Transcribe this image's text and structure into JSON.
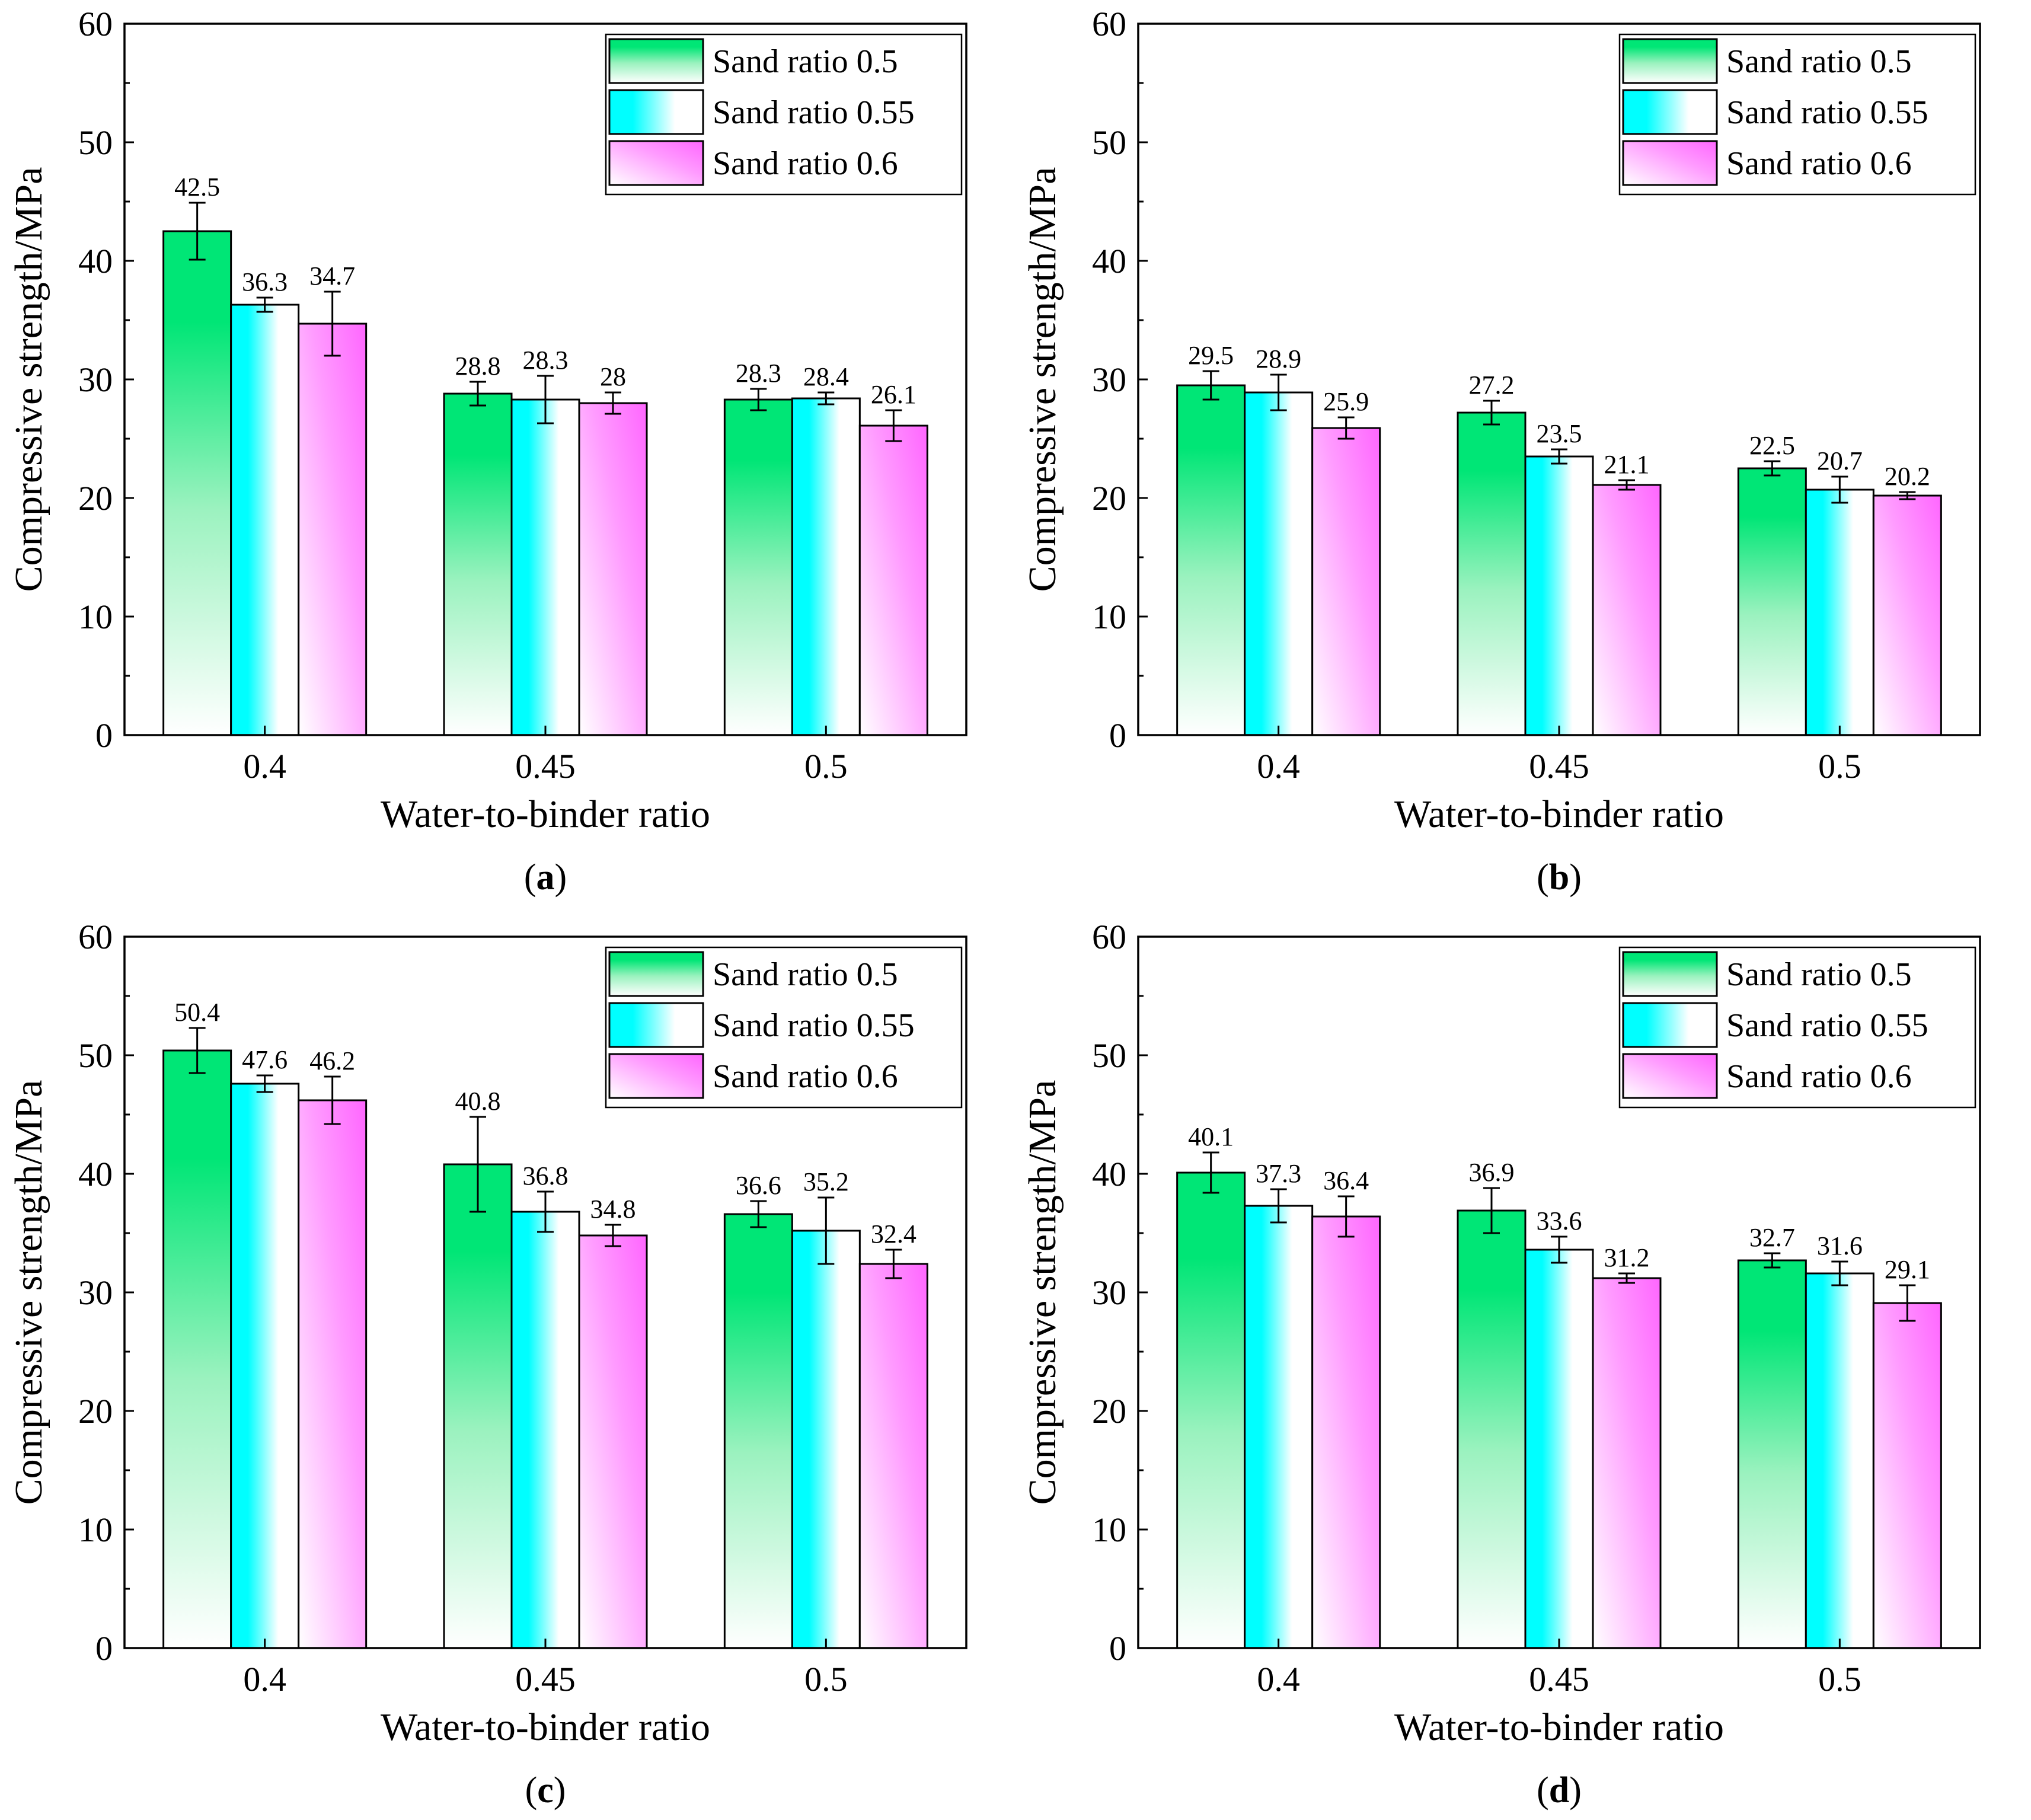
{
  "series_colors": [
    "#00e676",
    "#00ffff",
    "#ff66ff"
  ],
  "chart_data": [
    {
      "type": "bar",
      "panel_label": "a",
      "categories": [
        "0.4",
        "0.45",
        "0.5"
      ],
      "series": [
        {
          "name": "Sand ratio 0.5",
          "values": [
            42.5,
            28.8,
            28.3
          ],
          "value_labels": [
            "42.5",
            "28.8",
            "28.3"
          ],
          "errors": [
            2.4,
            1.0,
            0.9
          ]
        },
        {
          "name": "Sand ratio 0.55",
          "values": [
            36.3,
            28.3,
            28.4
          ],
          "value_labels": [
            "36.3",
            "28.3",
            "28.4"
          ],
          "errors": [
            0.6,
            2.0,
            0.5
          ]
        },
        {
          "name": "Sand ratio 0.6",
          "values": [
            34.7,
            28.0,
            26.1
          ],
          "value_labels": [
            "34.7",
            "28",
            "26.1"
          ],
          "errors": [
            2.7,
            0.9,
            1.3
          ]
        }
      ],
      "xlabel": "Water-to-binder ratio",
      "ylabel": "Compressive strength/MPa",
      "ylim": [
        0,
        60
      ],
      "yticks": [
        0,
        10,
        20,
        30,
        40,
        50,
        60
      ],
      "legend_position": "top-right"
    },
    {
      "type": "bar",
      "panel_label": "b",
      "categories": [
        "0.4",
        "0.45",
        "0.5"
      ],
      "series": [
        {
          "name": "Sand ratio 0.5",
          "values": [
            29.5,
            27.2,
            22.5
          ],
          "value_labels": [
            "29.5",
            "27.2",
            "22.5"
          ],
          "errors": [
            1.2,
            1.0,
            0.6
          ]
        },
        {
          "name": "Sand ratio 0.55",
          "values": [
            28.9,
            23.5,
            20.7
          ],
          "value_labels": [
            "28.9",
            "23.5",
            "20.7"
          ],
          "errors": [
            1.5,
            0.6,
            1.1
          ]
        },
        {
          "name": "Sand ratio 0.6",
          "values": [
            25.9,
            21.1,
            20.2
          ],
          "value_labels": [
            "25.9",
            "21.1",
            "20.2"
          ],
          "errors": [
            0.9,
            0.4,
            0.3
          ]
        }
      ],
      "xlabel": "Water-to-binder ratio",
      "ylabel": "Compressive strength/MPa",
      "ylim": [
        0,
        60
      ],
      "yticks": [
        0,
        10,
        20,
        30,
        40,
        50,
        60
      ],
      "legend_position": "top-right"
    },
    {
      "type": "bar",
      "panel_label": "c",
      "categories": [
        "0.4",
        "0.45",
        "0.5"
      ],
      "series": [
        {
          "name": "Sand ratio 0.5",
          "values": [
            50.4,
            40.8,
            36.6
          ],
          "value_labels": [
            "50.4",
            "40.8",
            "36.6"
          ],
          "errors": [
            1.9,
            4.0,
            1.1
          ]
        },
        {
          "name": "Sand ratio 0.55",
          "values": [
            47.6,
            36.8,
            35.2
          ],
          "value_labels": [
            "47.6",
            "36.8",
            "35.2"
          ],
          "errors": [
            0.7,
            1.7,
            2.8
          ]
        },
        {
          "name": "Sand ratio 0.6",
          "values": [
            46.2,
            34.8,
            32.4
          ],
          "value_labels": [
            "46.2",
            "34.8",
            "32.4"
          ],
          "errors": [
            2.0,
            0.9,
            1.2
          ]
        }
      ],
      "xlabel": "Water-to-binder ratio",
      "ylabel": "Compressive strength/MPa",
      "ylim": [
        0,
        60
      ],
      "yticks": [
        0,
        10,
        20,
        30,
        40,
        50,
        60
      ],
      "legend_position": "top-right"
    },
    {
      "type": "bar",
      "panel_label": "d",
      "categories": [
        "0.4",
        "0.45",
        "0.5"
      ],
      "series": [
        {
          "name": "Sand ratio 0.5",
          "values": [
            40.1,
            36.9,
            32.7
          ],
          "value_labels": [
            "40.1",
            "36.9",
            "32.7"
          ],
          "errors": [
            1.7,
            1.9,
            0.6
          ]
        },
        {
          "name": "Sand ratio 0.55",
          "values": [
            37.3,
            33.6,
            31.6
          ],
          "value_labels": [
            "37.3",
            "33.6",
            "31.6"
          ],
          "errors": [
            1.4,
            1.1,
            1.0
          ]
        },
        {
          "name": "Sand ratio 0.6",
          "values": [
            36.4,
            31.2,
            29.1
          ],
          "value_labels": [
            "36.4",
            "31.2",
            "29.1"
          ],
          "errors": [
            1.7,
            0.4,
            1.5
          ]
        }
      ],
      "xlabel": "Water-to-binder ratio",
      "ylabel": "Compressive strength/MPa",
      "ylim": [
        0,
        60
      ],
      "yticks": [
        0,
        10,
        20,
        30,
        40,
        50,
        60
      ],
      "legend_position": "top-right"
    }
  ]
}
